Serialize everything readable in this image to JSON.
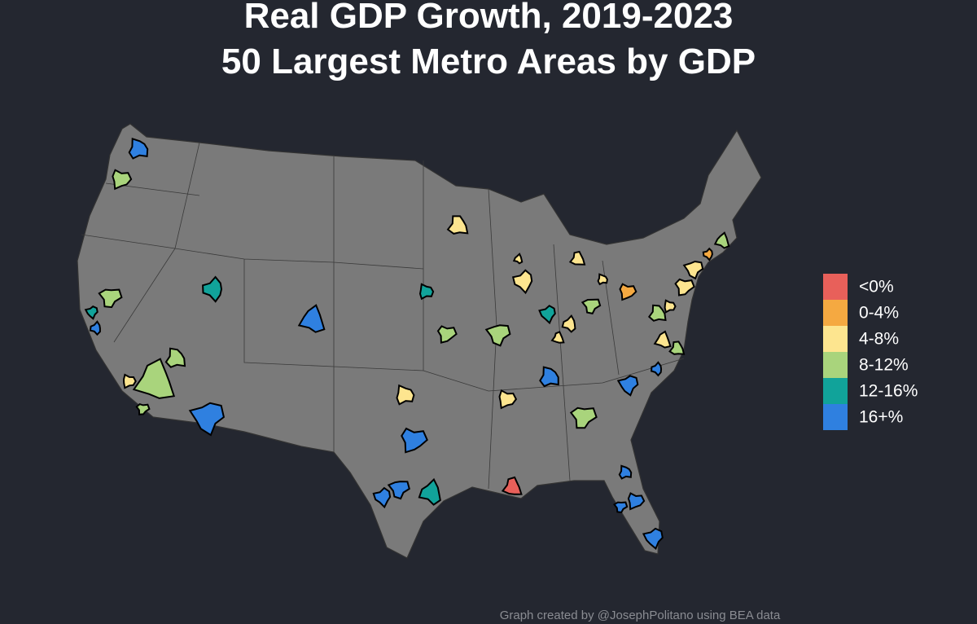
{
  "title": [
    "Real GDP Growth, 2019-2023",
    "50 Largest Metro Areas by GDP"
  ],
  "legend": {
    "items": [
      {
        "label": "<0%",
        "color": "#e8605a"
      },
      {
        "label": "0-4%",
        "color": "#f5a941"
      },
      {
        "label": "4-8%",
        "color": "#fde58f"
      },
      {
        "label": "8-12%",
        "color": "#a9d47c"
      },
      {
        "label": "12-16%",
        "color": "#11a39a"
      },
      {
        "label": "16+%",
        "color": "#2f80e0"
      }
    ]
  },
  "credit": "Graph created by @JosephPolitano using BEA data"
}
